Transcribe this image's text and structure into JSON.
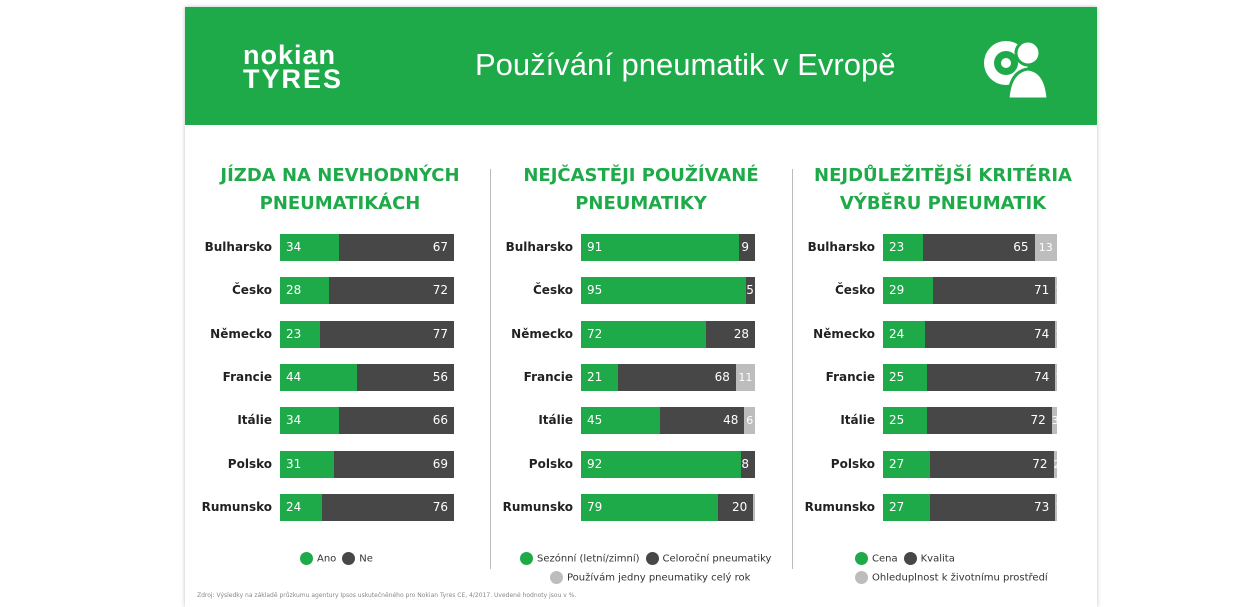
{
  "header": {
    "logo_line1": "nokian",
    "logo_line2": "TYRES",
    "title": "Používání pneumatik v Evropě",
    "icon": "tire-person-icon"
  },
  "colors": {
    "green": "#1faa4a",
    "dark": "#474747",
    "light": "#bdbdbd"
  },
  "chart_data": [
    {
      "type": "bar",
      "stacked": true,
      "orientation": "horizontal",
      "title": "JÍZDA NA NEVHODNÝCH PNEUMATIKÁCH",
      "categories": [
        "Bulharsko",
        "Česko",
        "Německo",
        "Francie",
        "Itálie",
        "Polsko",
        "Rumunsko"
      ],
      "series": [
        {
          "name": "Ano",
          "color": "#1faa4a",
          "values": [
            34,
            28,
            23,
            44,
            34,
            31,
            24
          ]
        },
        {
          "name": "Ne",
          "color": "#474747",
          "values": [
            67,
            72,
            77,
            56,
            66,
            69,
            76
          ]
        }
      ]
    },
    {
      "type": "bar",
      "stacked": true,
      "orientation": "horizontal",
      "title": "NEJČASTĚJI POUŽÍVANÉ PNEUMATIKY",
      "categories": [
        "Bulharsko",
        "Česko",
        "Německo",
        "Francie",
        "Itálie",
        "Polsko",
        "Rumunsko"
      ],
      "series": [
        {
          "name": "Sezónní (letní/zimní)",
          "color": "#1faa4a",
          "values": [
            91,
            95,
            72,
            21,
            45,
            92,
            79
          ]
        },
        {
          "name": "Celoroční pneumatiky",
          "color": "#474747",
          "values": [
            9,
            5,
            28,
            68,
            48,
            8,
            20
          ]
        },
        {
          "name": "Používám jedny pneumatiky celý rok",
          "color": "#bdbdbd",
          "values": [
            0,
            0,
            0,
            11,
            6,
            0,
            1
          ],
          "labels": [
            "",
            "",
            "",
            "11",
            "6",
            "",
            ""
          ]
        }
      ]
    },
    {
      "type": "bar",
      "stacked": true,
      "orientation": "horizontal",
      "title": "NEJDŮLEŽITĚJŠÍ KRITÉRIA VÝBĚRU PNEUMATIK",
      "categories": [
        "Bulharsko",
        "Česko",
        "Německo",
        "Francie",
        "Itálie",
        "Polsko",
        "Rumunsko"
      ],
      "series": [
        {
          "name": "Cena",
          "color": "#1faa4a",
          "values": [
            23,
            29,
            24,
            25,
            25,
            27,
            27
          ]
        },
        {
          "name": "Kvalita",
          "color": "#474747",
          "values": [
            65,
            71,
            74,
            74,
            72,
            72,
            73
          ]
        },
        {
          "name": "Ohleduplnost k životnímu prostředí",
          "color": "#bdbdbd",
          "values": [
            13,
            1,
            1,
            1,
            3,
            2,
            1
          ]
        }
      ]
    }
  ],
  "source": "Zdroj: Výsledky na základě průzkumu agentury Ipsos uskutečněného pro Nokian Tyres CE, 4/2017. Uvedené hodnoty jsou v %."
}
